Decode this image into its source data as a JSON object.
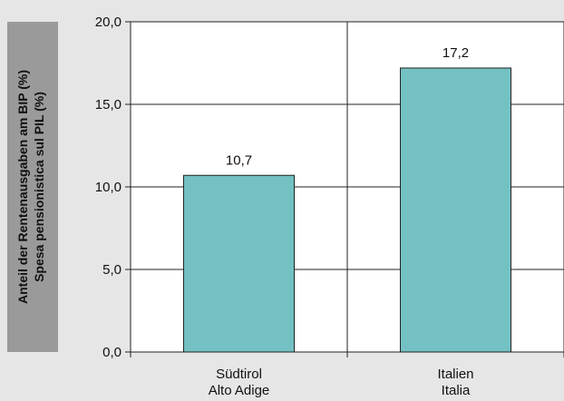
{
  "chart_data": {
    "type": "bar",
    "categories": [
      [
        "Südtirol",
        "Alto Adige"
      ],
      [
        "Italien",
        "Italia"
      ]
    ],
    "values": [
      10.7,
      17.2
    ],
    "value_labels": [
      "10,7",
      "17,2"
    ],
    "ylabel": [
      "Anteil der Rentenausgaben am BIP (%)",
      "Spesa pensionistica sul PIL (%)"
    ],
    "ylim": [
      0,
      20
    ],
    "yticks": [
      0,
      5,
      10,
      15,
      20
    ],
    "ytick_labels": [
      "0,0",
      "5,0",
      "10,0",
      "15,0",
      "20,0"
    ],
    "grid": true,
    "colors": {
      "bar": "#74c1c3",
      "bar_stroke": "#222222",
      "plot_bg": "#ffffff",
      "page_bg": "#e6e6e6",
      "ylabel_box": "#9a9a9a",
      "grid": "#222222"
    }
  }
}
